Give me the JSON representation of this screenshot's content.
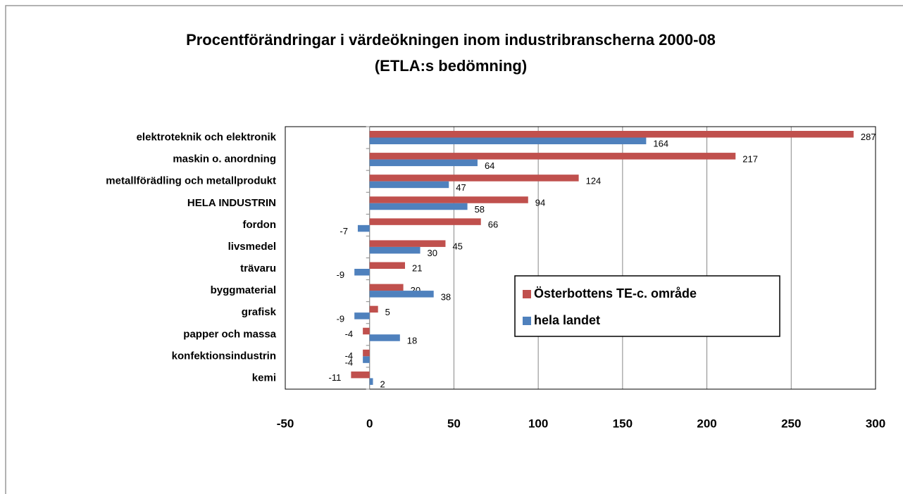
{
  "chart_data": {
    "type": "bar",
    "orientation": "horizontal",
    "title": "Procentförändringar i värdeökningen inom industribranscherna 2000-08",
    "subtitle": "(ETLA:s bedömning)",
    "categories": [
      "elektroteknik och elektronik",
      "maskin o. anordning",
      "metallförädling och metallprodukt",
      "HELA INDUSTRIN",
      "fordon",
      "livsmedel",
      "trävaru",
      "byggmaterial",
      "grafisk",
      "papper och massa",
      "konfektionsindustrin",
      "kemi"
    ],
    "series": [
      {
        "name": "Österbottens TE-c. område",
        "color": "#c0504d",
        "values": [
          287,
          217,
          124,
          94,
          66,
          45,
          21,
          20,
          5,
          -4,
          -4,
          -11
        ]
      },
      {
        "name": "hela landet",
        "color": "#4f81bd",
        "values": [
          164,
          64,
          47,
          58,
          -7,
          30,
          -9,
          38,
          -9,
          18,
          -4,
          2
        ]
      }
    ],
    "xlim": [
      -50,
      300
    ],
    "xticks": [
      -50,
      0,
      50,
      100,
      150,
      200,
      250,
      300
    ],
    "grid": true,
    "legend": "right"
  }
}
